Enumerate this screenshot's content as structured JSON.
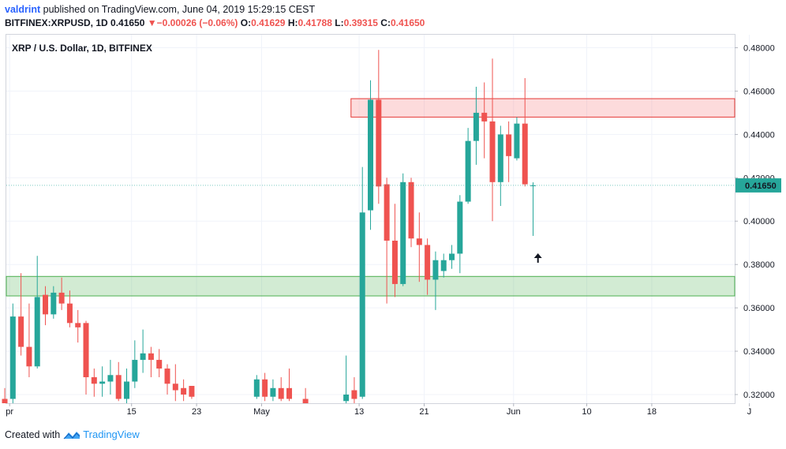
{
  "header": {
    "author": "valdrint",
    "published": "published on TradingView.com, June 04, 2019 15:29:15 CEST",
    "symbol": "BITFINEX:XRPUSD, 1D",
    "last": "0.41650",
    "change": "−0.00026 (−0.06%)",
    "o_label": "O:",
    "o": "0.41629",
    "h_label": "H:",
    "h": "0.41788",
    "l_label": "L:",
    "l": "0.39315",
    "c_label": "C:",
    "c": "0.41650"
  },
  "footer": {
    "created_with": "Created with",
    "brand": "TradingView"
  },
  "colors": {
    "up": "#26a69a",
    "down": "#ef5350",
    "resistance": "#f77c80",
    "support": "#4caf50",
    "price_label": "#26a69a"
  },
  "chart_data": {
    "type": "candlestick",
    "title": "XRP / U.S. Dollar, 1D, BITFINEX",
    "ylim": [
      0.316,
      0.486
    ],
    "y_ticks": [
      "0.48000",
      "0.46000",
      "0.44000",
      "0.42000",
      "0.40000",
      "0.38000",
      "0.36000",
      "0.34000",
      "0.32000"
    ],
    "x_ticks": [
      {
        "label": "pr",
        "day": 0
      },
      {
        "label": "15",
        "day": 15
      },
      {
        "label": "23",
        "day": 23
      },
      {
        "label": "May",
        "day": 31
      },
      {
        "label": "13",
        "day": 43
      },
      {
        "label": "21",
        "day": 51
      },
      {
        "label": "Jun",
        "day": 62
      },
      {
        "label": "10",
        "day": 71
      },
      {
        "label": "18",
        "day": 79
      },
      {
        "label": "J",
        "day": 91
      }
    ],
    "current_price_label": "0.41650",
    "current_price": 0.4165,
    "zones": [
      {
        "name": "resistance",
        "from_day": 42,
        "to_day": 91.5,
        "low": 0.448,
        "high": 0.4565
      },
      {
        "name": "support",
        "from_day": -0.5,
        "to_day": 91.5,
        "low": 0.3655,
        "high": 0.3745
      }
    ],
    "arrow": {
      "day": 65,
      "price": 0.383
    },
    "candles": [
      [
        -0.6,
        0.318,
        0.323,
        0.315,
        0.316
      ],
      [
        0.4,
        0.318,
        0.362,
        0.316,
        0.356
      ],
      [
        1.4,
        0.356,
        0.376,
        0.338,
        0.342
      ],
      [
        2.4,
        0.342,
        0.362,
        0.328,
        0.333
      ],
      [
        3.4,
        0.333,
        0.384,
        0.332,
        0.365
      ],
      [
        4.4,
        0.366,
        0.37,
        0.352,
        0.357
      ],
      [
        5.4,
        0.357,
        0.37,
        0.355,
        0.367
      ],
      [
        6.4,
        0.367,
        0.374,
        0.359,
        0.362
      ],
      [
        7.4,
        0.362,
        0.368,
        0.351,
        0.353
      ],
      [
        8.4,
        0.353,
        0.359,
        0.344,
        0.351
      ],
      [
        9.4,
        0.353,
        0.354,
        0.32,
        0.328
      ],
      [
        10.4,
        0.328,
        0.332,
        0.319,
        0.325
      ],
      [
        11.4,
        0.325,
        0.333,
        0.319,
        0.326
      ],
      [
        12.4,
        0.326,
        0.336,
        0.32,
        0.329
      ],
      [
        13.4,
        0.329,
        0.335,
        0.317,
        0.318
      ],
      [
        14.4,
        0.318,
        0.332,
        0.316,
        0.326
      ],
      [
        15.4,
        0.326,
        0.345,
        0.323,
        0.336
      ],
      [
        16.4,
        0.336,
        0.35,
        0.33,
        0.339
      ],
      [
        17.4,
        0.339,
        0.342,
        0.328,
        0.336
      ],
      [
        18.4,
        0.336,
        0.341,
        0.328,
        0.332
      ],
      [
        19.4,
        0.332,
        0.334,
        0.32,
        0.325
      ],
      [
        20.4,
        0.325,
        0.334,
        0.317,
        0.322
      ],
      [
        21.4,
        0.323,
        0.327,
        0.317,
        0.32
      ],
      [
        22.4,
        0.324,
        0.324,
        0.318,
        0.319
      ],
      [
        30.4,
        0.319,
        0.329,
        0.318,
        0.327
      ],
      [
        31.4,
        0.327,
        0.33,
        0.317,
        0.319
      ],
      [
        32.4,
        0.319,
        0.327,
        0.317,
        0.323
      ],
      [
        33.4,
        0.323,
        0.328,
        0.317,
        0.318
      ],
      [
        34.4,
        0.323,
        0.332,
        0.317,
        0.318
      ],
      [
        36.4,
        0.318,
        0.323,
        0.315,
        0.316
      ],
      [
        41.4,
        0.317,
        0.338,
        0.316,
        0.32
      ],
      [
        42.4,
        0.322,
        0.328,
        0.316,
        0.318
      ],
      [
        43.4,
        0.319,
        0.425,
        0.318,
        0.404
      ],
      [
        44.4,
        0.405,
        0.465,
        0.396,
        0.456
      ],
      [
        45.4,
        0.456,
        0.479,
        0.408,
        0.416
      ],
      [
        46.4,
        0.417,
        0.42,
        0.362,
        0.391
      ],
      [
        47.4,
        0.391,
        0.408,
        0.365,
        0.371
      ],
      [
        48.4,
        0.371,
        0.422,
        0.37,
        0.418
      ],
      [
        49.4,
        0.418,
        0.42,
        0.388,
        0.392
      ],
      [
        50.4,
        0.392,
        0.404,
        0.372,
        0.389
      ],
      [
        51.4,
        0.389,
        0.392,
        0.366,
        0.373
      ],
      [
        52.4,
        0.373,
        0.386,
        0.359,
        0.382
      ],
      [
        53.4,
        0.377,
        0.385,
        0.374,
        0.382
      ],
      [
        54.4,
        0.382,
        0.389,
        0.378,
        0.385
      ],
      [
        55.4,
        0.385,
        0.412,
        0.376,
        0.409
      ],
      [
        56.4,
        0.409,
        0.443,
        0.408,
        0.437
      ],
      [
        57.4,
        0.437,
        0.462,
        0.426,
        0.45
      ],
      [
        58.4,
        0.45,
        0.464,
        0.429,
        0.446
      ],
      [
        59.4,
        0.446,
        0.475,
        0.4,
        0.418
      ],
      [
        60.4,
        0.418,
        0.444,
        0.407,
        0.44
      ],
      [
        61.4,
        0.44,
        0.446,
        0.418,
        0.43
      ],
      [
        62.4,
        0.429,
        0.448,
        0.428,
        0.445
      ],
      [
        63.4,
        0.445,
        0.466,
        0.416,
        0.417
      ],
      [
        64.4,
        0.4163,
        0.4179,
        0.3932,
        0.4165
      ]
    ]
  }
}
